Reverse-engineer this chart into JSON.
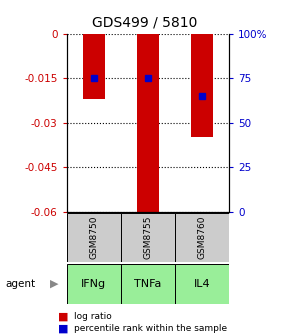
{
  "title": "GDS499 / 5810",
  "categories": [
    "IFNg",
    "TNFa",
    "IL4"
  ],
  "sample_labels": [
    "GSM8750",
    "GSM8755",
    "GSM8760"
  ],
  "log_ratios": [
    -0.022,
    -0.06,
    -0.035
  ],
  "percentile_ranks": [
    75,
    75,
    65
  ],
  "ylim_left": [
    -0.06,
    0
  ],
  "ylim_right": [
    0,
    100
  ],
  "left_ticks": [
    0,
    -0.015,
    -0.03,
    -0.045,
    -0.06
  ],
  "right_ticks": [
    0,
    25,
    50,
    75,
    100
  ],
  "bar_color": "#cc0000",
  "dot_color": "#0000cc",
  "agent_bg_color": "#99ee99",
  "sample_bg_color": "#cccccc",
  "left_tick_color": "#cc0000",
  "right_tick_color": "#0000cc",
  "agent_label": "agent",
  "arrow_char": "▶"
}
